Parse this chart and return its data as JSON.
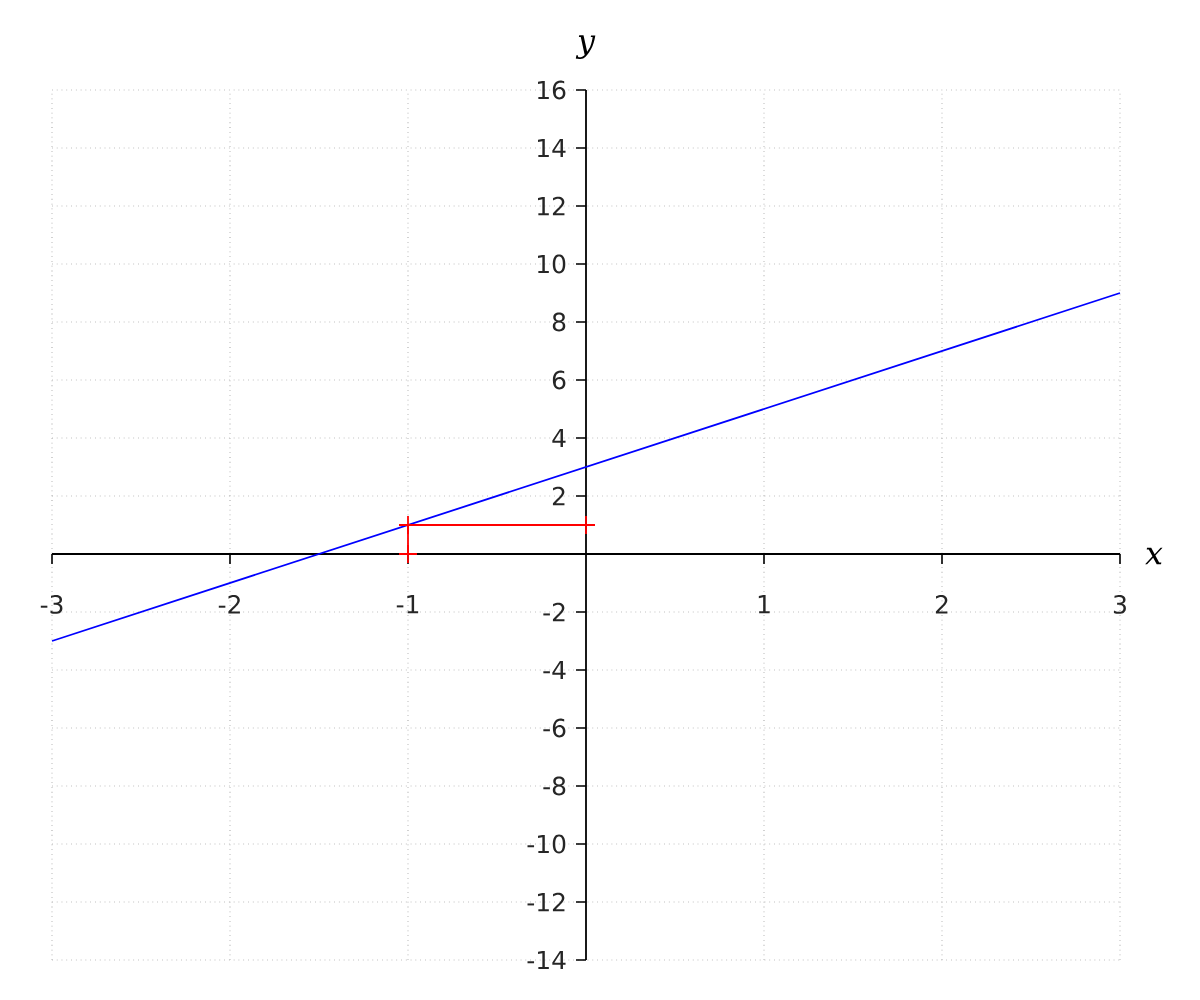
{
  "chart_data": {
    "type": "line",
    "xlabel": "x",
    "ylabel": "y",
    "xlim": [
      -3,
      3
    ],
    "ylim": [
      -14,
      16
    ],
    "xticks": [
      -3,
      -2,
      -1,
      1,
      2,
      3
    ],
    "yticks": [
      -14,
      -12,
      -10,
      -8,
      -6,
      -4,
      -2,
      2,
      4,
      6,
      8,
      10,
      12,
      14,
      16
    ],
    "grid": true,
    "series": [
      {
        "color": "#0000ff",
        "x": [
          -3,
          3
        ],
        "values": [
          -3,
          9
        ]
      },
      {
        "color": "#ff0000",
        "x": [
          -1,
          -1,
          0
        ],
        "values": [
          0,
          1,
          1
        ],
        "marker": "cross"
      }
    ]
  }
}
